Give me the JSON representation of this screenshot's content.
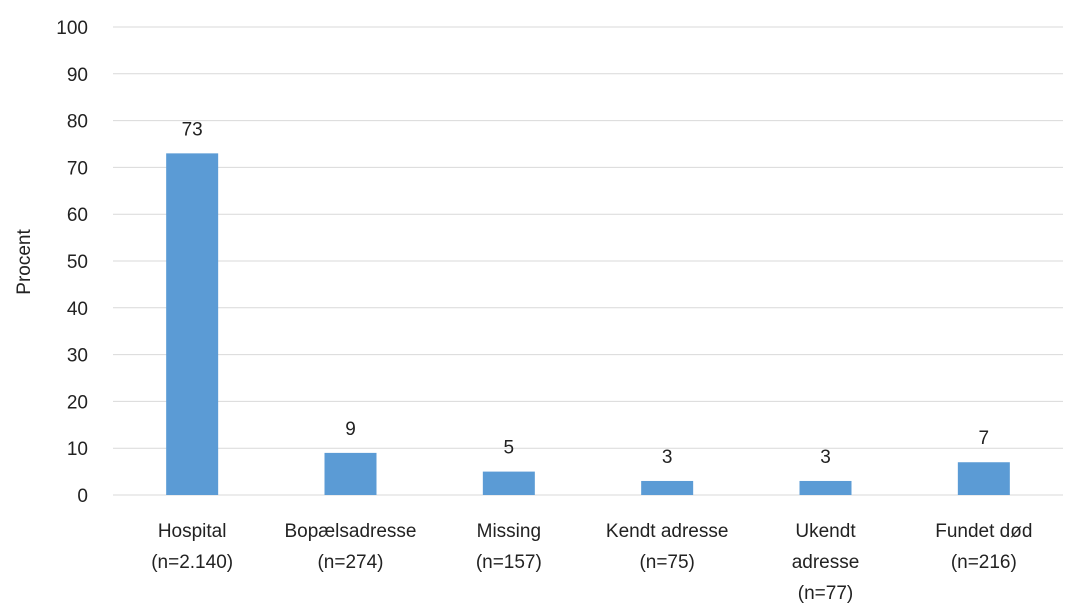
{
  "chart_data": {
    "type": "bar",
    "title": "",
    "xlabel": "",
    "ylabel": "Procent",
    "ylim": [
      0,
      100
    ],
    "yticks": [
      0,
      10,
      20,
      30,
      40,
      50,
      60,
      70,
      80,
      90,
      100
    ],
    "grid": true,
    "legend": "none",
    "bar_color": "#5b9bd5",
    "categories": [
      {
        "lines": [
          "Hospital",
          "(n=2.140)"
        ]
      },
      {
        "lines": [
          "Bopælsadresse",
          "(n=274)"
        ]
      },
      {
        "lines": [
          "Missing",
          "(n=157)"
        ]
      },
      {
        "lines": [
          "Kendt adresse",
          "(n=75)"
        ]
      },
      {
        "lines": [
          "Ukendt",
          "adresse",
          "(n=77)"
        ]
      },
      {
        "lines": [
          "Fundet død",
          "(n=216)"
        ]
      }
    ],
    "values": [
      73,
      9,
      5,
      3,
      3,
      7
    ],
    "data_labels": [
      "73",
      "9",
      "5",
      "3",
      "3",
      "7"
    ]
  }
}
